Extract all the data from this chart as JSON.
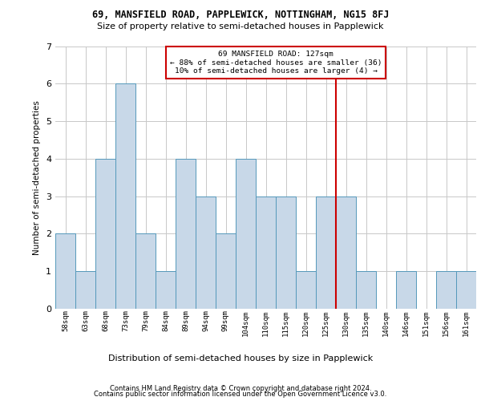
{
  "title1": "69, MANSFIELD ROAD, PAPPLEWICK, NOTTINGHAM, NG15 8FJ",
  "title2": "Size of property relative to semi-detached houses in Papplewick",
  "xlabel_bottom": "Distribution of semi-detached houses by size in Papplewick",
  "ylabel": "Number of semi-detached properties",
  "footer1": "Contains HM Land Registry data © Crown copyright and database right 2024.",
  "footer2": "Contains public sector information licensed under the Open Government Licence v3.0.",
  "bins": [
    "58sqm",
    "63sqm",
    "68sqm",
    "73sqm",
    "79sqm",
    "84sqm",
    "89sqm",
    "94sqm",
    "99sqm",
    "104sqm",
    "110sqm",
    "115sqm",
    "120sqm",
    "125sqm",
    "130sqm",
    "135sqm",
    "140sqm",
    "146sqm",
    "151sqm",
    "156sqm",
    "161sqm"
  ],
  "values": [
    2,
    1,
    4,
    6,
    2,
    1,
    4,
    3,
    2,
    4,
    3,
    3,
    1,
    3,
    3,
    1,
    0,
    1,
    0,
    1,
    1
  ],
  "bar_color": "#c8d8e8",
  "bar_edge_color": "#5599bb",
  "grid_color": "#c8c8c8",
  "vline_color": "#cc0000",
  "vline_x": 13.5,
  "annotation_text": "69 MANSFIELD ROAD: 127sqm\n← 88% of semi-detached houses are smaller (36)\n10% of semi-detached houses are larger (4) →",
  "ann_box_color": "#cc0000",
  "ylim_max": 7,
  "yticks": [
    0,
    1,
    2,
    3,
    4,
    5,
    6,
    7
  ],
  "title1_fontsize": 8.5,
  "title2_fontsize": 8.0,
  "ylabel_fontsize": 7.5,
  "xtick_fontsize": 6.5,
  "ytick_fontsize": 8.0,
  "ann_fontsize": 6.8,
  "footer_fontsize": 6.0,
  "xlabel_fontsize": 8.0
}
